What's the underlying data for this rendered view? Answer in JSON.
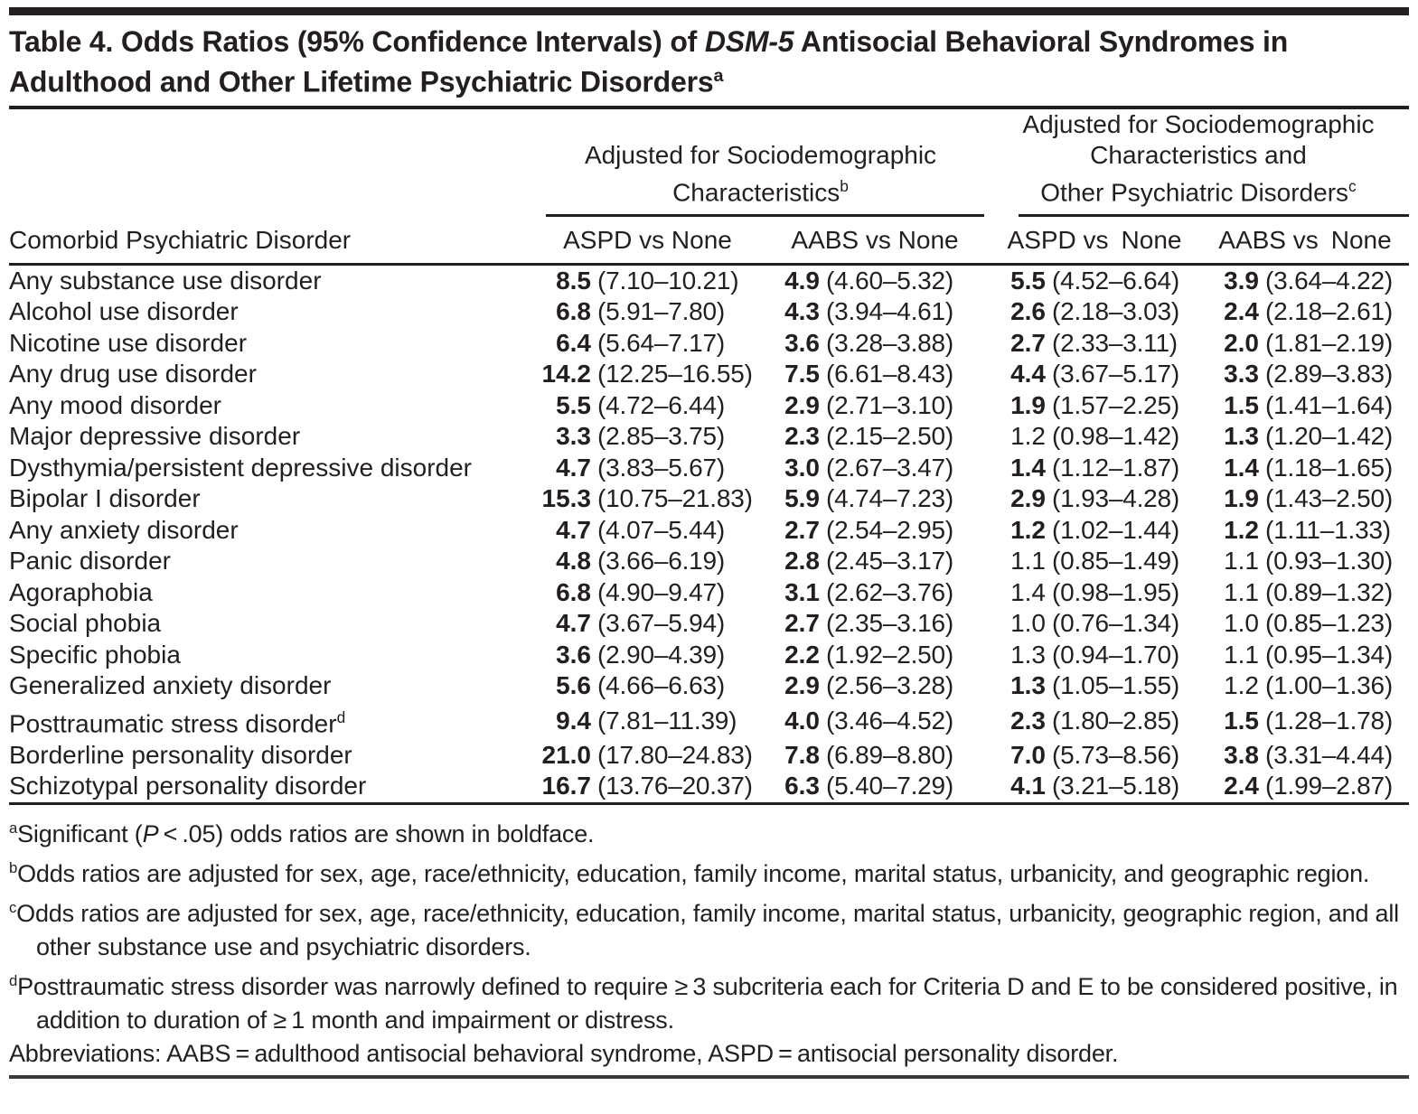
{
  "title": {
    "part1": "Table 4. Odds Ratios (95% Confidence Intervals) of ",
    "italic": "DSM-5",
    "part2": " Antisocial Behavioral Syndromes in Adulthood and Other Lifetime Psychiatric Disorders",
    "sup": "a"
  },
  "table": {
    "row_header": "Comorbid Psychiatric Disorder",
    "group1": {
      "line1": "Adjusted for Sociodemographic",
      "line2": "Characteristics",
      "sup": "b"
    },
    "group2": {
      "line1": "Adjusted for Sociodemographic",
      "line2": "Characteristics and",
      "line3": "Other Psychiatric Disorders",
      "sup": "c"
    },
    "col_headers": [
      "ASPD vs None",
      "AABS vs None",
      "ASPD vs None",
      "AABS vs None"
    ],
    "rows": [
      {
        "label": "Any substance use disorder",
        "cells": [
          {
            "or": "8.5",
            "ci": "(7.10–10.21)",
            "b": true
          },
          {
            "or": "4.9",
            "ci": "(4.60–5.32)",
            "b": true
          },
          {
            "or": "5.5",
            "ci": "(4.52–6.64)",
            "b": true
          },
          {
            "or": "3.9",
            "ci": "(3.64–4.22)",
            "b": true
          }
        ]
      },
      {
        "label": "Alcohol use disorder",
        "cells": [
          {
            "or": "6.8",
            "ci": "(5.91–7.80)",
            "b": true
          },
          {
            "or": "4.3",
            "ci": "(3.94–4.61)",
            "b": true
          },
          {
            "or": "2.6",
            "ci": "(2.18–3.03)",
            "b": true
          },
          {
            "or": "2.4",
            "ci": "(2.18–2.61)",
            "b": true
          }
        ]
      },
      {
        "label": "Nicotine use disorder",
        "cells": [
          {
            "or": "6.4",
            "ci": "(5.64–7.17)",
            "b": true
          },
          {
            "or": "3.6",
            "ci": "(3.28–3.88)",
            "b": true
          },
          {
            "or": "2.7",
            "ci": "(2.33–3.11)",
            "b": true
          },
          {
            "or": "2.0",
            "ci": "(1.81–2.19)",
            "b": true
          }
        ]
      },
      {
        "label": "Any drug use disorder",
        "cells": [
          {
            "or": "14.2",
            "ci": "(12.25–16.55)",
            "b": true
          },
          {
            "or": "7.5",
            "ci": "(6.61–8.43)",
            "b": true
          },
          {
            "or": "4.4",
            "ci": "(3.67–5.17)",
            "b": true
          },
          {
            "or": "3.3",
            "ci": "(2.89–3.83)",
            "b": true
          }
        ]
      },
      {
        "label": "Any mood disorder",
        "cells": [
          {
            "or": "5.5",
            "ci": "(4.72–6.44)",
            "b": true
          },
          {
            "or": "2.9",
            "ci": "(2.71–3.10)",
            "b": true
          },
          {
            "or": "1.9",
            "ci": "(1.57–2.25)",
            "b": true
          },
          {
            "or": "1.5",
            "ci": "(1.41–1.64)",
            "b": true
          }
        ]
      },
      {
        "label": "Major depressive disorder",
        "cells": [
          {
            "or": "3.3",
            "ci": "(2.85–3.75)",
            "b": true
          },
          {
            "or": "2.3",
            "ci": "(2.15–2.50)",
            "b": true
          },
          {
            "or": "1.2",
            "ci": "(0.98–1.42)",
            "b": false
          },
          {
            "or": "1.3",
            "ci": "(1.20–1.42)",
            "b": true
          }
        ]
      },
      {
        "label": "Dysthymia/persistent depressive disorder",
        "cells": [
          {
            "or": "4.7",
            "ci": "(3.83–5.67)",
            "b": true
          },
          {
            "or": "3.0",
            "ci": "(2.67–3.47)",
            "b": true
          },
          {
            "or": "1.4",
            "ci": "(1.12–1.87)",
            "b": true
          },
          {
            "or": "1.4",
            "ci": "(1.18–1.65)",
            "b": true
          }
        ]
      },
      {
        "label": "Bipolar I disorder",
        "cells": [
          {
            "or": "15.3",
            "ci": "(10.75–21.83)",
            "b": true
          },
          {
            "or": "5.9",
            "ci": "(4.74–7.23)",
            "b": true
          },
          {
            "or": "2.9",
            "ci": "(1.93–4.28)",
            "b": true
          },
          {
            "or": "1.9",
            "ci": "(1.43–2.50)",
            "b": true
          }
        ]
      },
      {
        "label": "Any anxiety disorder",
        "cells": [
          {
            "or": "4.7",
            "ci": "(4.07–5.44)",
            "b": true
          },
          {
            "or": "2.7",
            "ci": "(2.54–2.95)",
            "b": true
          },
          {
            "or": "1.2",
            "ci": "(1.02–1.44)",
            "b": true
          },
          {
            "or": "1.2",
            "ci": "(1.11–1.33)",
            "b": true
          }
        ]
      },
      {
        "label": "Panic disorder",
        "cells": [
          {
            "or": "4.8",
            "ci": "(3.66–6.19)",
            "b": true
          },
          {
            "or": "2.8",
            "ci": "(2.45–3.17)",
            "b": true
          },
          {
            "or": "1.1",
            "ci": "(0.85–1.49)",
            "b": false
          },
          {
            "or": "1.1",
            "ci": "(0.93–1.30)",
            "b": false
          }
        ]
      },
      {
        "label": "Agoraphobia",
        "cells": [
          {
            "or": "6.8",
            "ci": "(4.90–9.47)",
            "b": true
          },
          {
            "or": "3.1",
            "ci": "(2.62–3.76)",
            "b": true
          },
          {
            "or": "1.4",
            "ci": "(0.98–1.95)",
            "b": false
          },
          {
            "or": "1.1",
            "ci": "(0.89–1.32)",
            "b": false
          }
        ]
      },
      {
        "label": "Social phobia",
        "cells": [
          {
            "or": "4.7",
            "ci": "(3.67–5.94)",
            "b": true
          },
          {
            "or": "2.7",
            "ci": "(2.35–3.16)",
            "b": true
          },
          {
            "or": "1.0",
            "ci": "(0.76–1.34)",
            "b": false
          },
          {
            "or": "1.0",
            "ci": "(0.85–1.23)",
            "b": false
          }
        ]
      },
      {
        "label": "Specific phobia",
        "cells": [
          {
            "or": "3.6",
            "ci": "(2.90–4.39)",
            "b": true
          },
          {
            "or": "2.2",
            "ci": "(1.92–2.50)",
            "b": true
          },
          {
            "or": "1.3",
            "ci": "(0.94–1.70)",
            "b": false
          },
          {
            "or": "1.1",
            "ci": "(0.95–1.34)",
            "b": false
          }
        ]
      },
      {
        "label": "Generalized anxiety disorder",
        "cells": [
          {
            "or": "5.6",
            "ci": "(4.66–6.63)",
            "b": true
          },
          {
            "or": "2.9",
            "ci": "(2.56–3.28)",
            "b": true
          },
          {
            "or": "1.3",
            "ci": "(1.05–1.55)",
            "b": true
          },
          {
            "or": "1.2",
            "ci": "(1.00–1.36)",
            "b": false
          }
        ]
      },
      {
        "label": "Posttraumatic stress disorder",
        "label_sup": "d",
        "cells": [
          {
            "or": "9.4",
            "ci": "(7.81–11.39)",
            "b": true
          },
          {
            "or": "4.0",
            "ci": "(3.46–4.52)",
            "b": true
          },
          {
            "or": "2.3",
            "ci": "(1.80–2.85)",
            "b": true
          },
          {
            "or": "1.5",
            "ci": "(1.28–1.78)",
            "b": true
          }
        ]
      },
      {
        "label": "Borderline personality disorder",
        "cells": [
          {
            "or": "21.0",
            "ci": "(17.80–24.83)",
            "b": true
          },
          {
            "or": "7.8",
            "ci": "(6.89–8.80)",
            "b": true
          },
          {
            "or": "7.0",
            "ci": "(5.73–8.56)",
            "b": true
          },
          {
            "or": "3.8",
            "ci": "(3.31–4.44)",
            "b": true
          }
        ]
      },
      {
        "label": "Schizotypal personality disorder",
        "cells": [
          {
            "or": "16.7",
            "ci": "(13.76–20.37)",
            "b": true
          },
          {
            "or": "6.3",
            "ci": "(5.40–7.29)",
            "b": true
          },
          {
            "or": "4.1",
            "ci": "(3.21–5.18)",
            "b": true
          },
          {
            "or": "2.4",
            "ci": "(1.99–2.87)",
            "b": true
          }
        ]
      }
    ]
  },
  "footnotes": [
    {
      "sup": "a",
      "parts": [
        {
          "t": "Significant ("
        },
        {
          "t": "P",
          "i": true
        },
        {
          "t": " < .05) odds ratios are shown in boldface."
        }
      ]
    },
    {
      "sup": "b",
      "parts": [
        {
          "t": "Odds ratios are adjusted for sex, age, race/ethnicity, education, family income, marital status, urbanicity, and geographic region."
        }
      ]
    },
    {
      "sup": "c",
      "parts": [
        {
          "t": "Odds ratios are adjusted for sex, age, race/ethnicity, education, family income, marital status, urbanicity, geographic region, and all other substance use and psychiatric disorders."
        }
      ]
    },
    {
      "sup": "d",
      "parts": [
        {
          "t": "Posttraumatic stress disorder was narrowly defined to require ≥ 3 subcriteria each for Criteria D and E to be considered positive, in addition to duration of ≥ 1 month and impairment or distress."
        }
      ]
    },
    {
      "sup": "",
      "parts": [
        {
          "t": "Abbreviations: AABS = adulthood antisocial behavioral syndrome, ASPD = antisocial personality disorder."
        }
      ]
    }
  ]
}
